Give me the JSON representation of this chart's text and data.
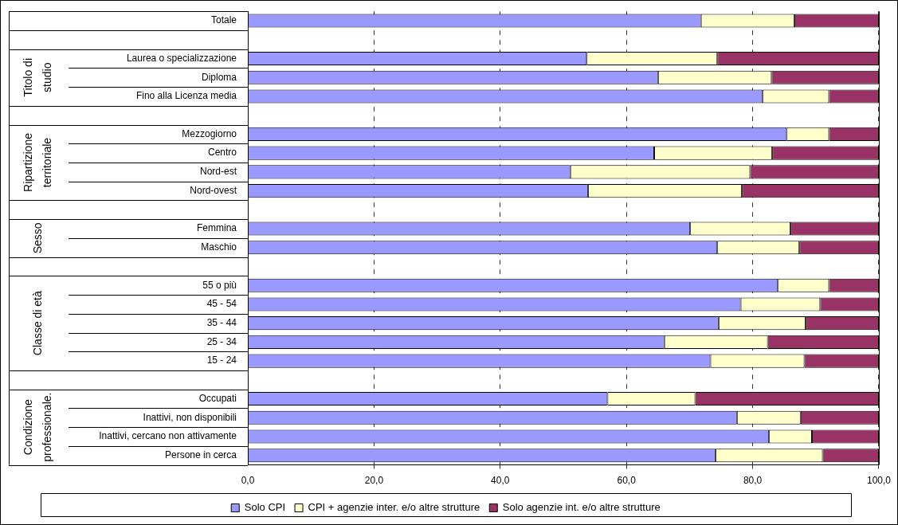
{
  "chart_data": {
    "type": "bar",
    "orientation": "horizontal",
    "stacked": true,
    "categories": [
      "Totale",
      null,
      "Laurea o specializzazione",
      "Diploma",
      "Fino alla Licenza media",
      null,
      "Mezzogiorno",
      "Centro",
      "Nord-est",
      "Nord-ovest",
      null,
      "Femmina",
      "Maschio",
      null,
      "55 o più",
      "45 - 54",
      "35 - 44",
      "25 - 34",
      "15 - 24",
      null,
      "Occupati",
      "Inattivi, non disponibili",
      "Inattivi, cercano non attivamente",
      "Persone in cerca"
    ],
    "series": [
      {
        "name": "Solo CPI",
        "color": "#9999ff",
        "values": [
          71.8,
          null,
          53.7,
          65.0,
          81.6,
          null,
          85.4,
          64.4,
          51.1,
          53.9,
          null,
          70.1,
          74.4,
          null,
          84.0,
          78.1,
          74.6,
          66.0,
          73.3,
          null,
          57.0,
          77.5,
          82.6,
          74.1
        ]
      },
      {
        "name": "CPI + agenzie inter. e/o altre strutture",
        "color": "#ffffcc",
        "values": [
          14.8,
          null,
          20.7,
          18.0,
          10.5,
          null,
          6.7,
          18.7,
          28.5,
          24.4,
          null,
          15.9,
          13.0,
          null,
          8.1,
          12.6,
          13.8,
          16.4,
          14.9,
          null,
          13.9,
          10.1,
          6.8,
          17.0
        ]
      },
      {
        "name": "Solo agenzie int. e/o altre strutture",
        "color": "#993366",
        "values": [
          13.4,
          null,
          25.6,
          17.0,
          7.9,
          null,
          7.9,
          16.9,
          20.4,
          21.7,
          null,
          14.0,
          12.6,
          null,
          7.9,
          9.3,
          11.6,
          17.6,
          11.8,
          null,
          29.1,
          12.4,
          10.6,
          8.9
        ]
      }
    ],
    "xlim": [
      0,
      100
    ],
    "xticks": [
      {
        "value": 0,
        "label": "0,0"
      },
      {
        "value": 20,
        "label": "20,0"
      },
      {
        "value": 40,
        "label": "40,0"
      },
      {
        "value": 60,
        "label": "60,0"
      },
      {
        "value": 80,
        "label": "80,0"
      },
      {
        "value": 100,
        "label": "100,0"
      }
    ],
    "annotations": [
      "Titolo di studio",
      "Ripartizione territoriale",
      "Sesso",
      "Classe di età",
      "Condizione professionale."
    ],
    "grid": "x",
    "legend": "bottom"
  }
}
